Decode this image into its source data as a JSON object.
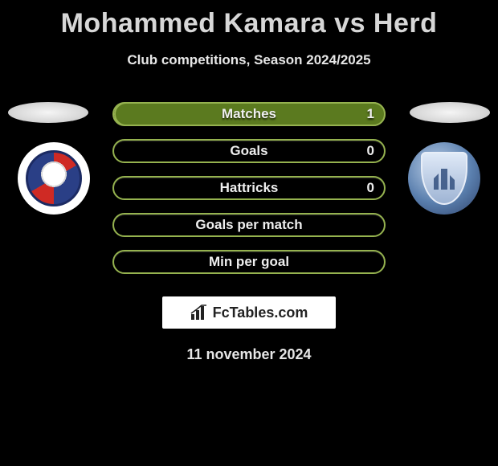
{
  "title": "Mohammed Kamara vs Herd",
  "subtitle": "Club competitions, Season 2024/2025",
  "date": "11 november 2024",
  "watermark_text": "FcTables.com",
  "palette": {
    "background": "#000000",
    "border": "#95b24f",
    "fill": "#5b7a1f",
    "text": "#eeeeee"
  },
  "bars": {
    "border_color": "#95b24f",
    "fill_color": "#5b7a1f",
    "label_fontsize": 17,
    "rows": [
      {
        "key": "matches",
        "label": "Matches",
        "left": null,
        "right": "1",
        "left_fill_pct": 0,
        "right_fill_pct": 100
      },
      {
        "key": "goals",
        "label": "Goals",
        "left": null,
        "right": "0",
        "left_fill_pct": 0,
        "right_fill_pct": 0
      },
      {
        "key": "hattricks",
        "label": "Hattricks",
        "left": null,
        "right": "0",
        "left_fill_pct": 0,
        "right_fill_pct": 0
      },
      {
        "key": "gpm",
        "label": "Goals per match",
        "left": null,
        "right": null,
        "left_fill_pct": 0,
        "right_fill_pct": 0
      },
      {
        "key": "mpg",
        "label": "Min per goal",
        "left": null,
        "right": null,
        "left_fill_pct": 0,
        "right_fill_pct": 0
      }
    ]
  }
}
